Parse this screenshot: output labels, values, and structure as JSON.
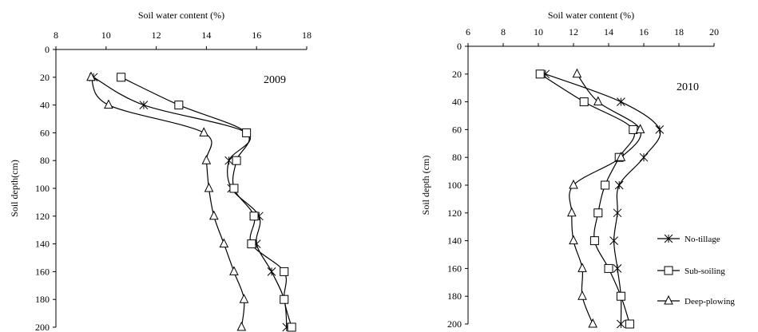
{
  "chart_data": [
    {
      "type": "line",
      "label": "2009",
      "xlabel": "Soil water content (%)",
      "ylabel": "Soil depth(cm)",
      "xlim": [
        8,
        18
      ],
      "ylim": [
        0,
        200
      ],
      "x_ticks": [
        8,
        10,
        12,
        14,
        16,
        18
      ],
      "y_ticks": [
        0,
        20,
        40,
        60,
        80,
        100,
        120,
        140,
        160,
        180,
        200
      ],
      "x_axis_position": "top",
      "y_reversed": true,
      "grid": false,
      "legend": "none",
      "depths": [
        20,
        40,
        60,
        80,
        100,
        120,
        140,
        160,
        180,
        200
      ],
      "series": [
        {
          "marker": "star",
          "values": [
            9.5,
            11.5,
            15.6,
            14.9,
            15.0,
            16.1,
            16.0,
            16.6,
            17.1,
            17.2
          ]
        },
        {
          "marker": "square",
          "values": [
            10.6,
            12.9,
            15.6,
            15.2,
            15.1,
            15.9,
            15.8,
            17.1,
            17.1,
            17.4
          ]
        },
        {
          "marker": "triangle",
          "values": [
            9.4,
            10.1,
            13.9,
            14.0,
            14.1,
            14.3,
            14.7,
            15.1,
            15.5,
            15.4
          ]
        }
      ]
    },
    {
      "type": "line",
      "label": "2010",
      "xlabel": "Soil water content (%)",
      "ylabel": "Soil depth (cm)",
      "xlim": [
        6,
        20
      ],
      "ylim": [
        0,
        200
      ],
      "x_ticks": [
        6,
        8,
        10,
        12,
        14,
        16,
        18,
        20
      ],
      "y_ticks": [
        0,
        20,
        40,
        60,
        80,
        100,
        120,
        140,
        160,
        180,
        200
      ],
      "x_axis_position": "top",
      "y_reversed": true,
      "grid": false,
      "legend": "bottom-right",
      "depths": [
        20,
        40,
        60,
        80,
        100,
        120,
        140,
        160,
        180,
        200
      ],
      "series": [
        {
          "name": "No-tillage",
          "marker": "star",
          "values": [
            10.4,
            14.7,
            16.9,
            16.0,
            14.6,
            14.5,
            14.3,
            14.5,
            14.7,
            14.7
          ]
        },
        {
          "name": "Sub-soiling",
          "marker": "square",
          "values": [
            10.1,
            12.6,
            15.4,
            14.6,
            13.8,
            13.4,
            13.2,
            14.0,
            14.7,
            15.2
          ]
        },
        {
          "name": "Deep-plowing",
          "marker": "triangle",
          "values": [
            12.2,
            13.4,
            15.8,
            14.7,
            12.0,
            11.9,
            12.0,
            12.5,
            12.5,
            13.1
          ]
        }
      ]
    }
  ]
}
